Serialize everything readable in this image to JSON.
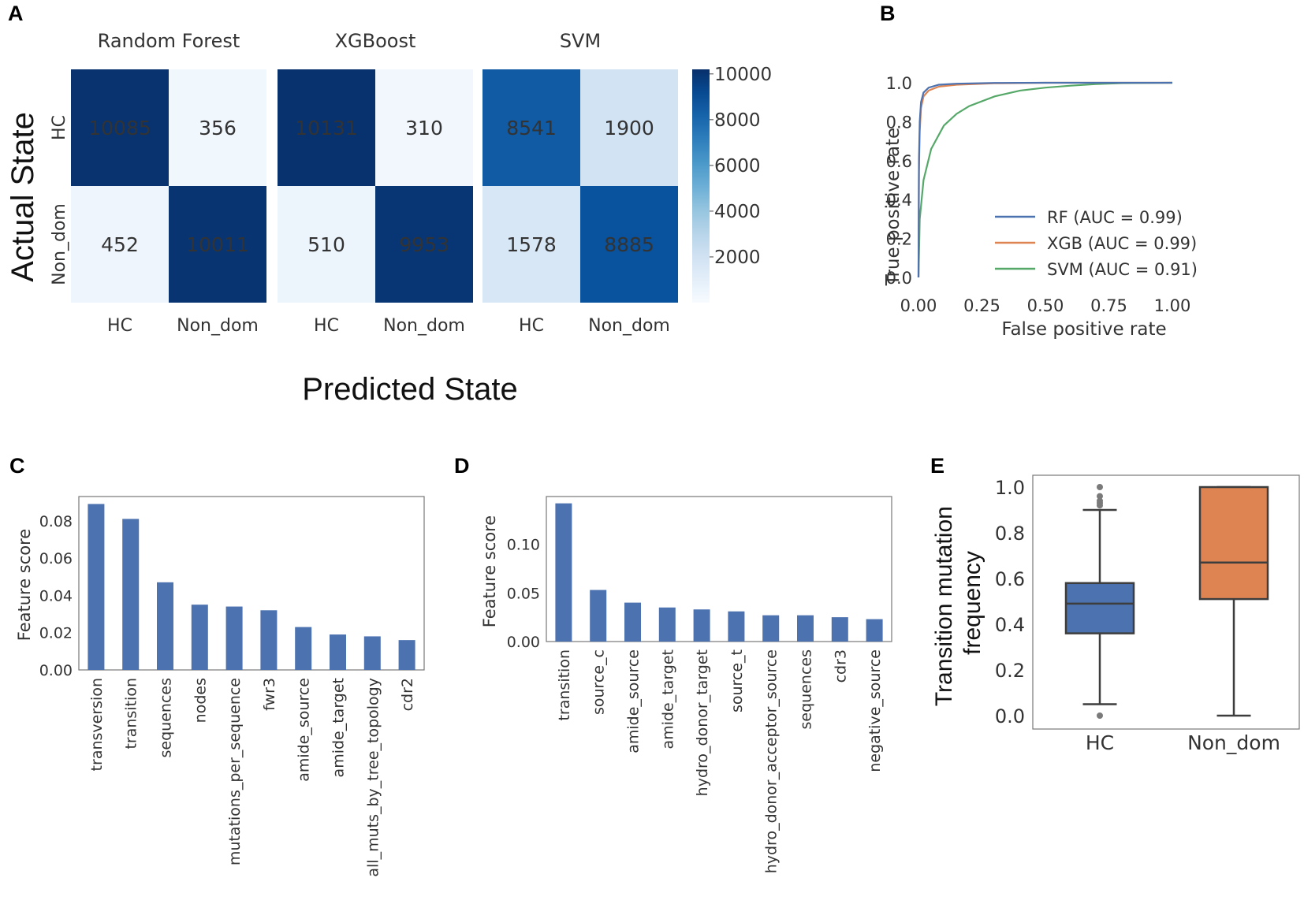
{
  "panels": {
    "a": "A",
    "b": "B",
    "c": "C",
    "d": "D",
    "e": "E"
  },
  "colors": {
    "bar": "#4c72b0",
    "rf": "#4c72b0",
    "xgb": "#dd8452",
    "svm": "#55a868",
    "box_hc": "#4c72b0",
    "box_nd": "#dd8452"
  },
  "chart_data": [
    {
      "type": "heatmap",
      "id": "confusion",
      "ylabel": "Actual State",
      "xlabel": "Predicted State",
      "row_labels": [
        "HC",
        "Non_dom"
      ],
      "col_labels": [
        "HC",
        "Non_dom"
      ],
      "matrices": [
        {
          "title": "Random Forest",
          "values": [
            [
              10085,
              356
            ],
            [
              452,
              10011
            ]
          ]
        },
        {
          "title": "XGBoost",
          "values": [
            [
              10131,
              310
            ],
            [
              510,
              9953
            ]
          ]
        },
        {
          "title": "SVM",
          "values": [
            [
              8541,
              1900
            ],
            [
              1578,
              8885
            ]
          ]
        }
      ],
      "colorbar": {
        "ticks": [
          10000,
          8000,
          6000,
          4000,
          2000
        ],
        "range": [
          0,
          10200
        ]
      }
    },
    {
      "type": "line",
      "id": "roc",
      "xlabel": "False positive rate",
      "ylabel": "True positive rate",
      "xlim": [
        0,
        1
      ],
      "ylim": [
        0,
        1
      ],
      "xticks": [
        "0.00",
        "0.25",
        "0.50",
        "0.75",
        "1.00"
      ],
      "yticks": [
        "0.0",
        "0.2",
        "0.4",
        "0.6",
        "0.8",
        "1.0"
      ],
      "legend_position": "lower-right",
      "series": [
        {
          "name": "RF (AUC = 0.99)",
          "x": [
            0,
            0.002,
            0.005,
            0.01,
            0.02,
            0.04,
            0.08,
            0.15,
            0.3,
            0.5,
            1.0
          ],
          "y": [
            0,
            0.6,
            0.8,
            0.9,
            0.95,
            0.975,
            0.99,
            0.995,
            0.999,
            1.0,
            1.0
          ]
        },
        {
          "name": "XGB (AUC = 0.99)",
          "x": [
            0,
            0.002,
            0.005,
            0.01,
            0.02,
            0.04,
            0.08,
            0.15,
            0.3,
            0.5,
            1.0
          ],
          "y": [
            0,
            0.55,
            0.75,
            0.87,
            0.93,
            0.96,
            0.98,
            0.99,
            0.997,
            1.0,
            1.0
          ]
        },
        {
          "name": "SVM (AUC = 0.91)",
          "x": [
            0,
            0.005,
            0.02,
            0.05,
            0.1,
            0.15,
            0.2,
            0.3,
            0.4,
            0.5,
            0.6,
            0.7,
            0.8,
            1.0
          ],
          "y": [
            0,
            0.3,
            0.5,
            0.66,
            0.78,
            0.84,
            0.88,
            0.93,
            0.96,
            0.975,
            0.985,
            0.993,
            0.998,
            1.0
          ]
        }
      ]
    },
    {
      "type": "bar",
      "id": "features_c",
      "ylabel": "Feature score",
      "ylim": [
        0,
        0.093
      ],
      "yticks": [
        "0.00",
        "0.02",
        "0.04",
        "0.06",
        "0.08"
      ],
      "categories": [
        "transversion",
        "transition",
        "sequences",
        "nodes",
        "mutations_per_sequence",
        "fwr3",
        "amide_source",
        "amide_target",
        "all_muts_by_tree_topology",
        "cdr2"
      ],
      "values": [
        0.089,
        0.081,
        0.047,
        0.035,
        0.034,
        0.032,
        0.023,
        0.019,
        0.018,
        0.016
      ]
    },
    {
      "type": "bar",
      "id": "features_d",
      "ylabel": "Feature score",
      "ylim": [
        0,
        0.149
      ],
      "yticks": [
        "0.00",
        "0.05",
        "0.10"
      ],
      "categories": [
        "transition",
        "source_c",
        "amide_source",
        "amide_target",
        "hydro_donor_target",
        "source_t",
        "hydro_donor_acceptor_source",
        "sequences",
        "cdr3",
        "negative_source"
      ],
      "values": [
        0.142,
        0.053,
        0.04,
        0.035,
        0.033,
        0.031,
        0.027,
        0.027,
        0.025,
        0.023
      ]
    },
    {
      "type": "box",
      "id": "boxplot_e",
      "ylabel": "Transition mutation frequency",
      "ylim": [
        -0.05,
        1.05
      ],
      "yticks": [
        "0.0",
        "0.2",
        "0.4",
        "0.6",
        "0.8",
        "1.0"
      ],
      "categories": [
        "HC",
        "Non_dom"
      ],
      "boxes": [
        {
          "q1": 0.36,
          "median": 0.49,
          "q3": 0.58,
          "whisker_low": 0.05,
          "whisker_high": 0.9,
          "outliers": [
            0.0,
            0.92,
            0.93,
            0.94,
            0.96,
            1.0
          ]
        },
        {
          "q1": 0.51,
          "median": 0.67,
          "q3": 1.0,
          "whisker_low": 0.0,
          "whisker_high": 1.0,
          "outliers": []
        }
      ]
    }
  ]
}
